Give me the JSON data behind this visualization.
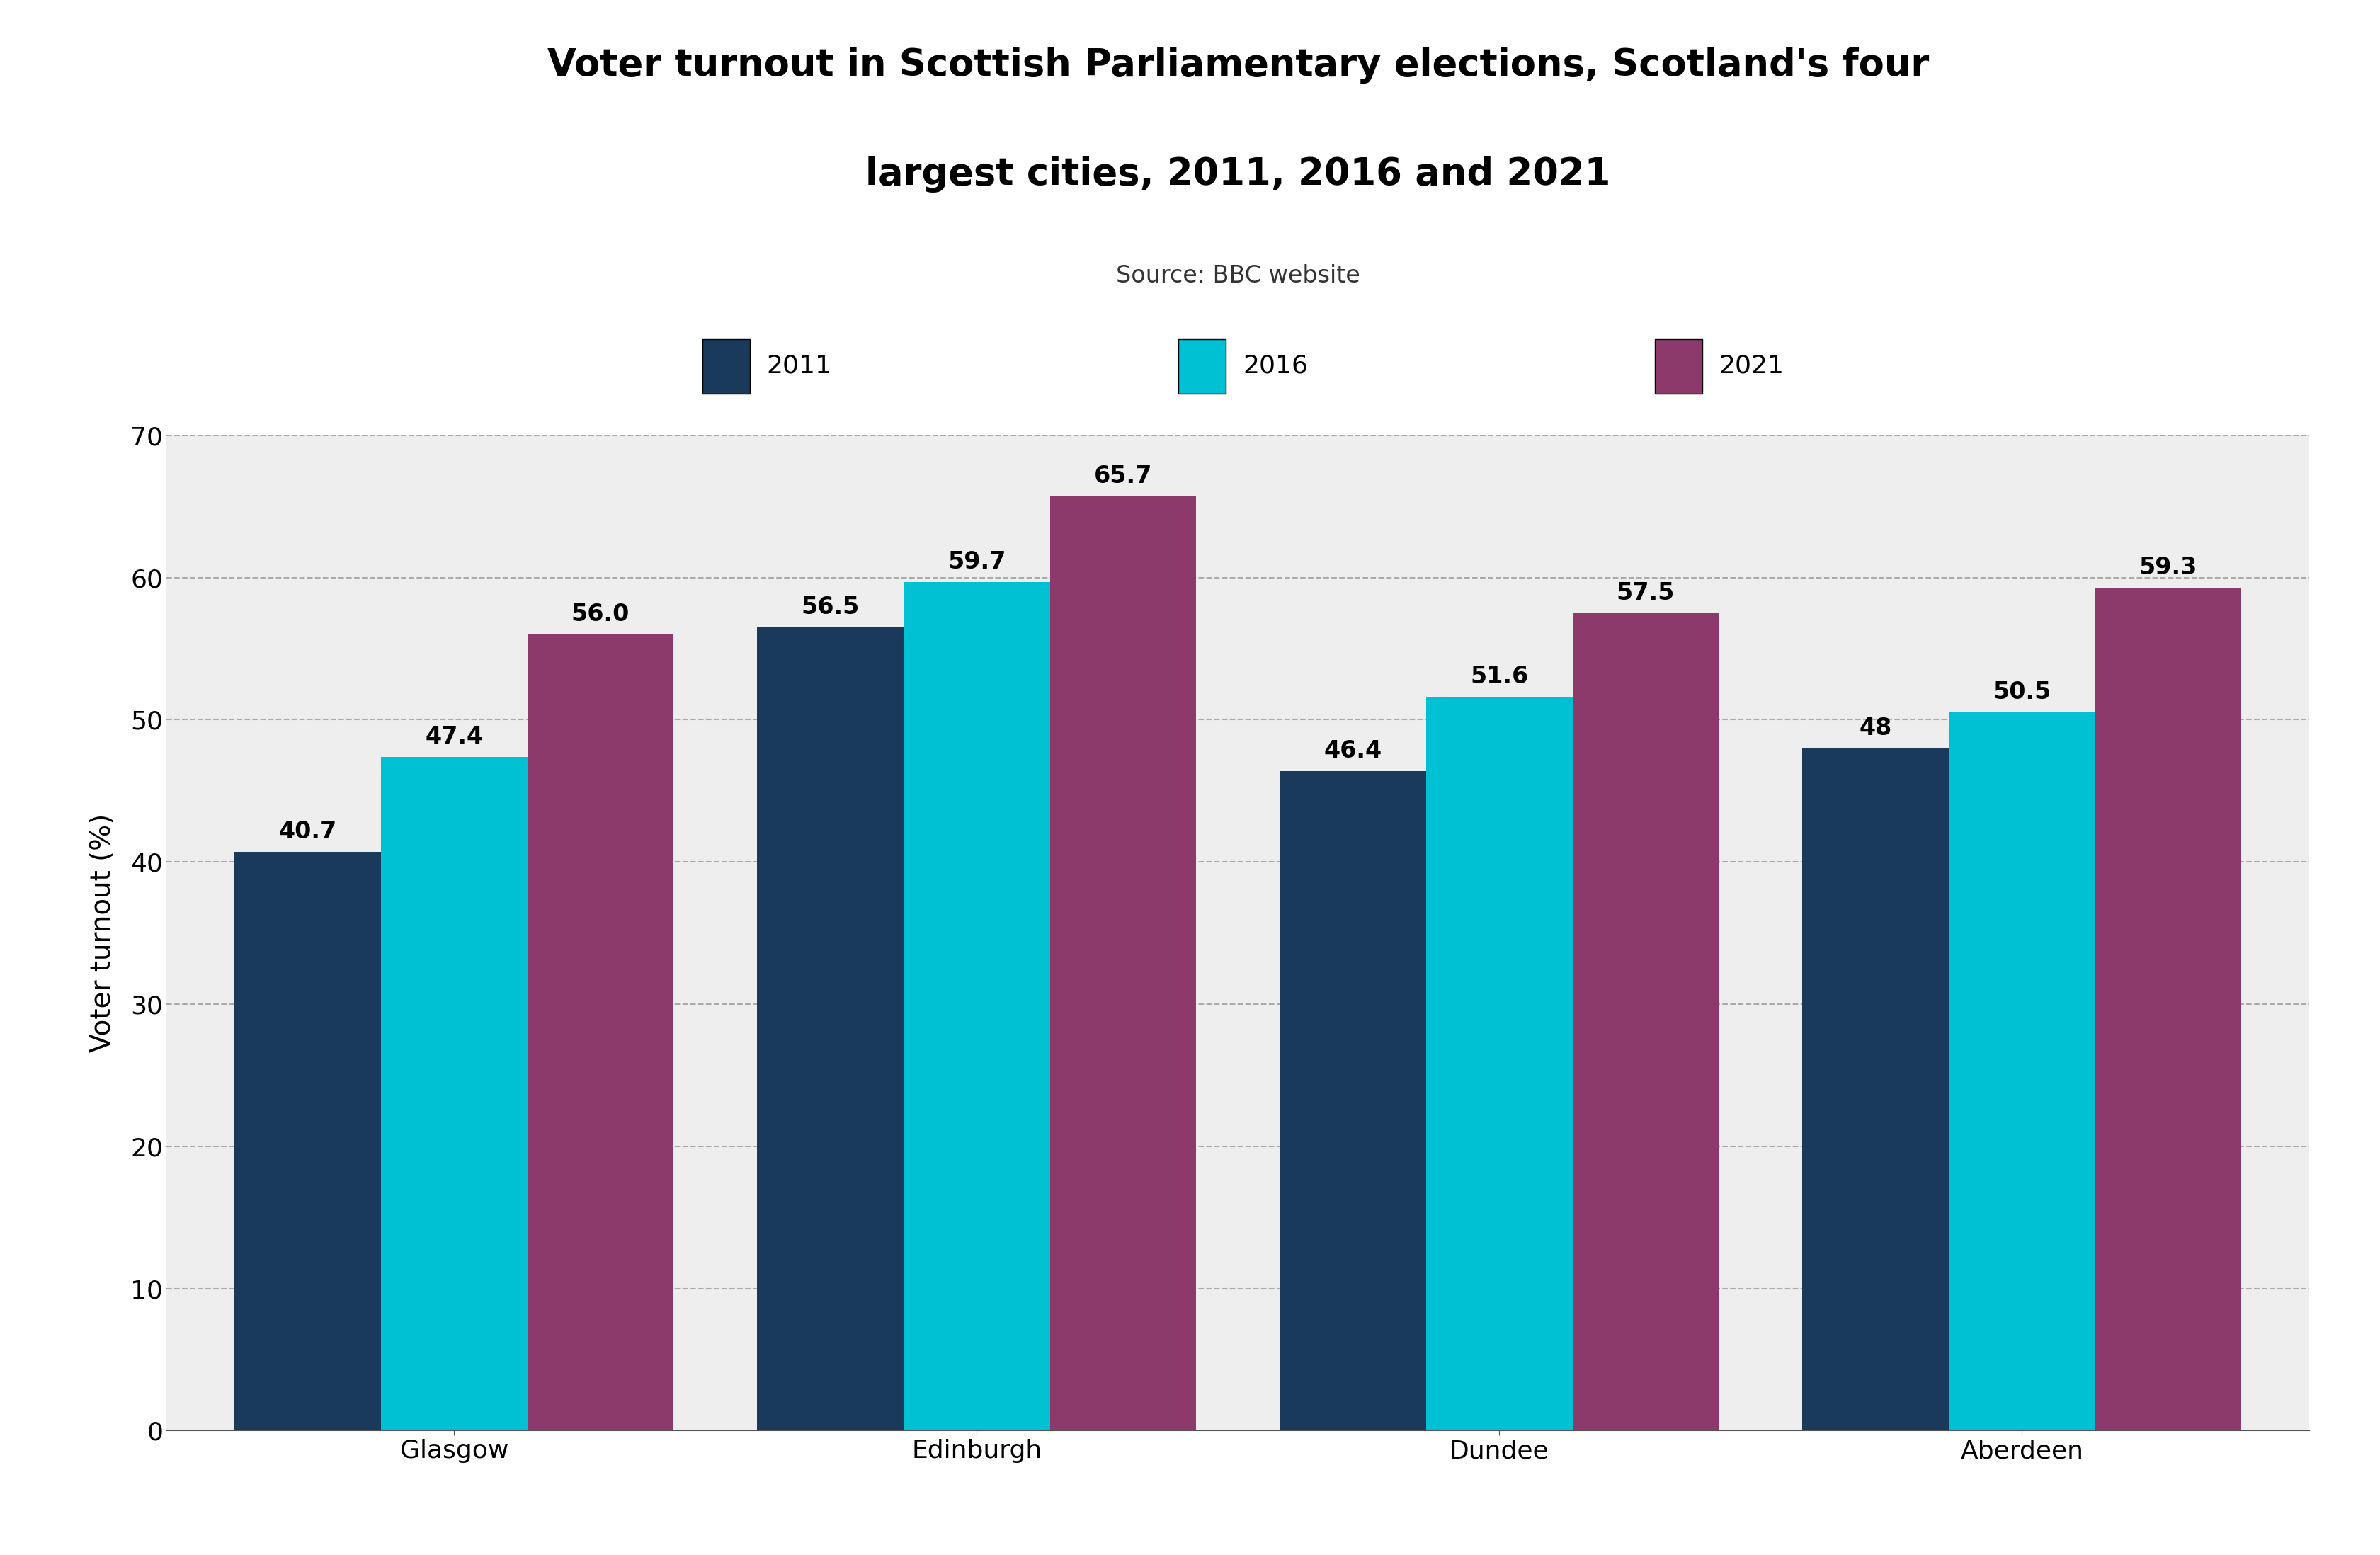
{
  "title_line1": "Voter turnout in Scottish Parliamentary elections, Scotland's four",
  "title_line2": "largest cities, 2011, 2016 and 2021",
  "source": "Source: BBC website",
  "categories": [
    "Glasgow",
    "Edinburgh",
    "Dundee",
    "Aberdeen"
  ],
  "years": [
    "2011",
    "2016",
    "2021"
  ],
  "values": {
    "2011": [
      40.7,
      56.5,
      46.4,
      48.0
    ],
    "2016": [
      47.4,
      59.7,
      51.6,
      50.5
    ],
    "2021": [
      56.0,
      65.7,
      57.5,
      59.3
    ]
  },
  "value_labels": {
    "2011": [
      "40.7",
      "56.5",
      "46.4",
      "48"
    ],
    "2016": [
      "47.4",
      "59.7",
      "51.6",
      "50.5"
    ],
    "2021": [
      "56.0",
      "65.7",
      "57.5",
      "59.3"
    ]
  },
  "colors": {
    "2011": "#1a3a5c",
    "2016": "#00c0d4",
    "2021": "#8b3a6b"
  },
  "ylabel": "Voter turnout (%)",
  "ylim": [
    0,
    70
  ],
  "yticks": [
    0,
    10,
    20,
    30,
    40,
    50,
    60,
    70
  ],
  "background_color": "#eeeeee",
  "bar_width": 0.28,
  "title_fontsize": 38,
  "source_fontsize": 24,
  "tick_fontsize": 26,
  "legend_fontsize": 26,
  "value_fontsize": 24,
  "ylabel_fontsize": 28
}
